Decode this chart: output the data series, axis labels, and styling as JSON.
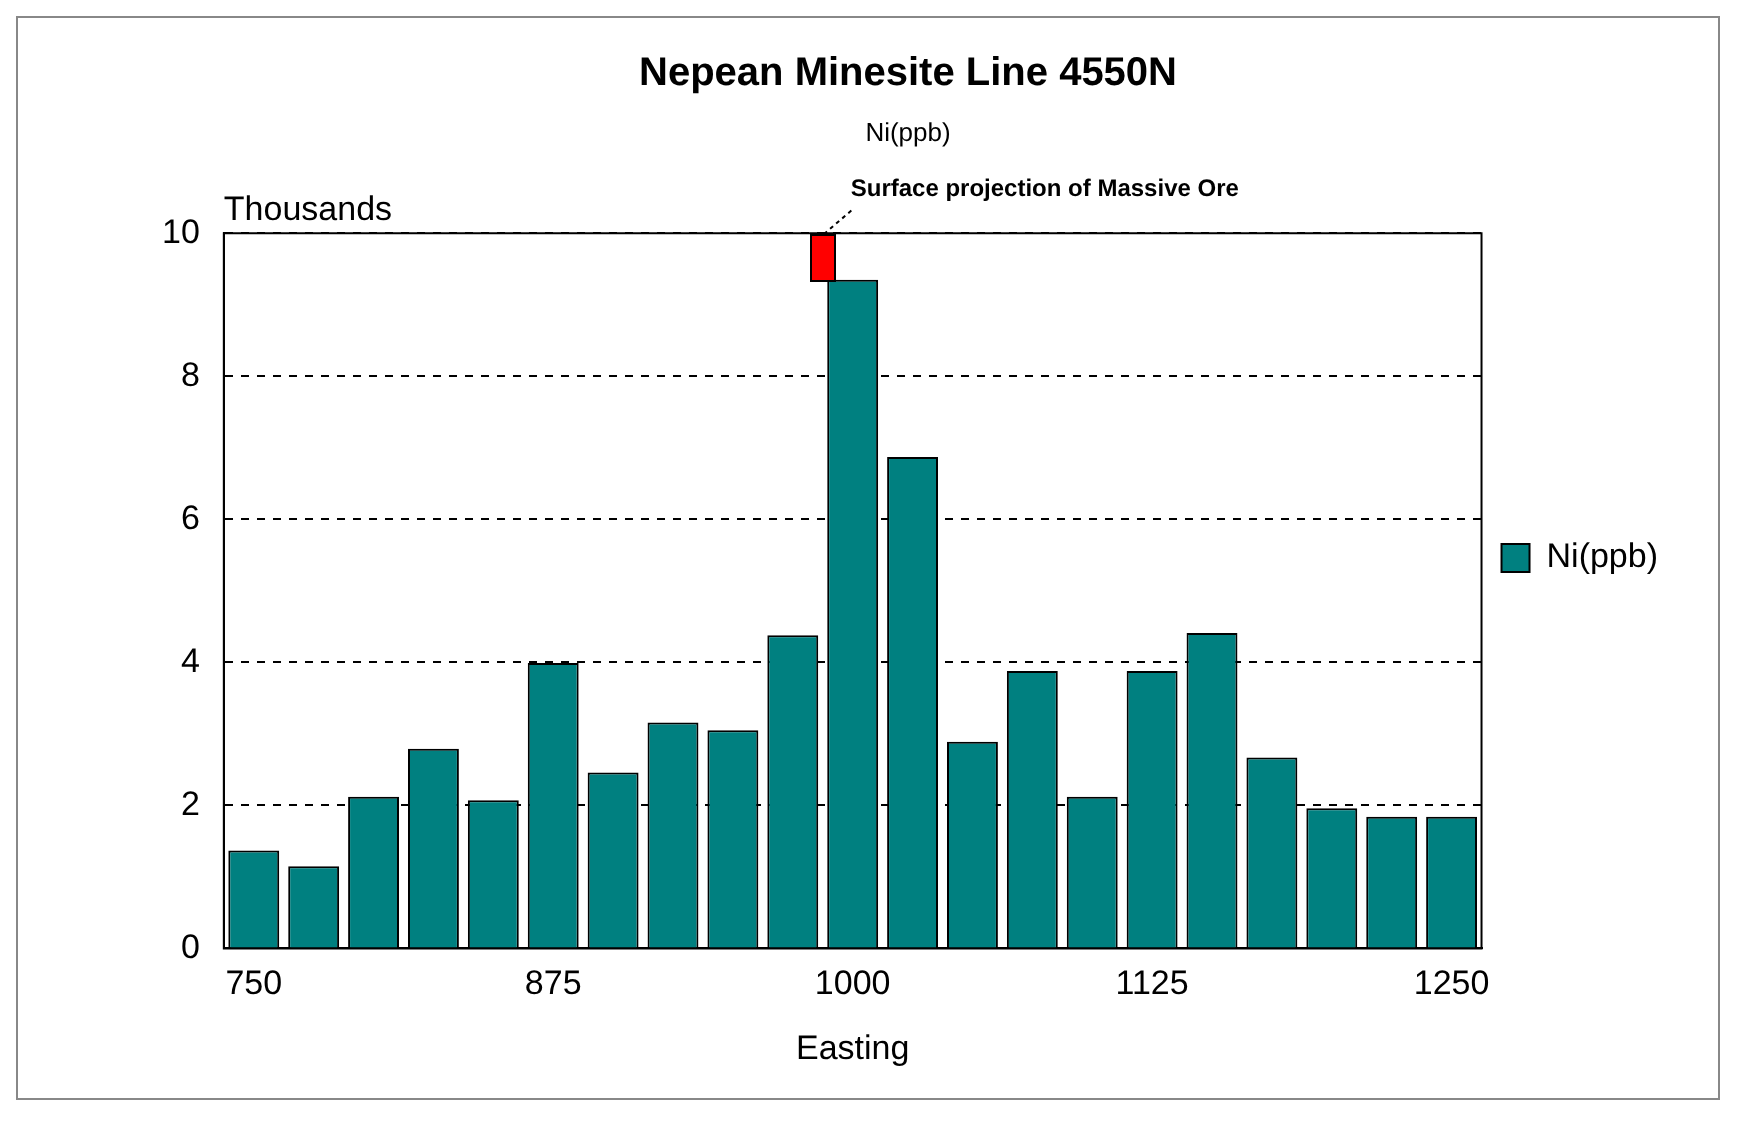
{
  "chart_data": {
    "type": "bar",
    "title": "Nepean Minesite Line 4550N",
    "subtitle": "Ni(ppb)",
    "xlabel": "Easting",
    "ylabel": "Thousands",
    "categories": [
      "750",
      null,
      null,
      null,
      null,
      "875",
      null,
      null,
      null,
      null,
      "1000",
      null,
      null,
      null,
      null,
      "1125",
      null,
      null,
      null,
      null,
      "1250"
    ],
    "series": [
      {
        "name": "Ni(ppb)",
        "color": "#008080",
        "values": [
          1.37,
          1.15,
          2.12,
          2.79,
          2.07,
          3.99,
          2.46,
          3.16,
          3.05,
          4.38,
          9.35,
          6.87,
          2.89,
          3.88,
          2.12,
          3.88,
          4.41,
          2.67,
          1.96,
          1.84,
          1.84
        ]
      }
    ],
    "ylim": [
      0,
      10
    ],
    "yticks": [
      0,
      2,
      4,
      6,
      8,
      10
    ],
    "grid": "y",
    "legend": "right",
    "annotations": [
      "Surface projection of Massive Ore"
    ]
  }
}
